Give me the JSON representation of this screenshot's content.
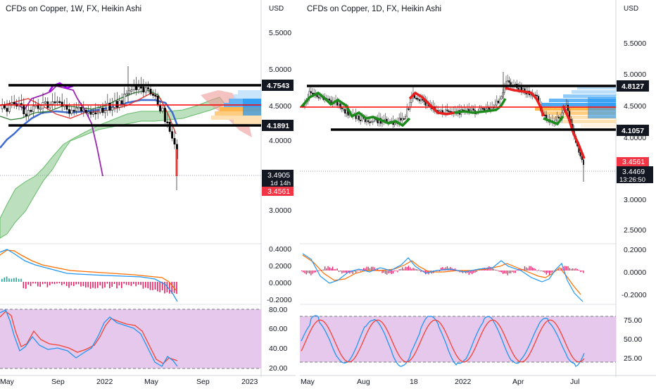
{
  "left_chart": {
    "title": "CFDs on Copper, 1W, FX, Heikin Ashi",
    "currency": "USD",
    "price_ticks": [
      "5.5000",
      "5.0000",
      "4.5000",
      "4.0000",
      "3.0000"
    ],
    "levels": [
      {
        "label": "4.7543",
        "kind": "resistance-line"
      },
      {
        "label": "4.1891",
        "kind": "support-line"
      }
    ],
    "last_price_tag": {
      "price": "3.4905",
      "countdown": "1d 14h"
    },
    "price_tag": "3.4561",
    "macd_ticks": [
      "0.4000",
      "0.2000",
      "0.0000",
      "-0.2000"
    ],
    "rsi_ticks": [
      "80.00",
      "60.00",
      "40.00",
      "20.00"
    ],
    "time_labels": [
      "May",
      "Sep",
      "2022",
      "May",
      "Sep",
      "2023"
    ]
  },
  "right_chart": {
    "title": "CFDs on Copper, 1D, FX, Heikin Ashi",
    "currency": "USD",
    "price_ticks": [
      "5.5000",
      "5.0000",
      "4.5000",
      "4.0000",
      "3.0000",
      "2.5000"
    ],
    "levels": [
      {
        "label": "4.8127",
        "kind": "resistance-line"
      },
      {
        "label": "4.1057",
        "kind": "support-line"
      }
    ],
    "price_tag": "3.4561",
    "last_price_tag": {
      "price": "3.4469",
      "countdown": "13:26:50"
    },
    "macd_ticks": [
      "0.2000",
      "0.0000",
      "-0.2000"
    ],
    "stoch_ticks": [
      "75.00",
      "50.00",
      "25.00"
    ],
    "time_labels": [
      "May",
      "Aug",
      "18",
      "2022",
      "Apr",
      "Jul"
    ]
  },
  "colors": {
    "black_level": "#000000",
    "red_line": "#ff0000",
    "tag_dark": "#131722",
    "tag_red": "#f23645",
    "rsi_fill": "#e1bee7",
    "macd_blue": "#2196f3",
    "macd_orange": "#ff6d00",
    "hist_pink": "#e91e63",
    "cloud_green": "#a5d6a7",
    "ma_blue": "#3f6bd1",
    "purple": "#9c27b0",
    "supertrend_red": "#e91e1e",
    "supertrend_green": "#1b8a1b"
  }
}
